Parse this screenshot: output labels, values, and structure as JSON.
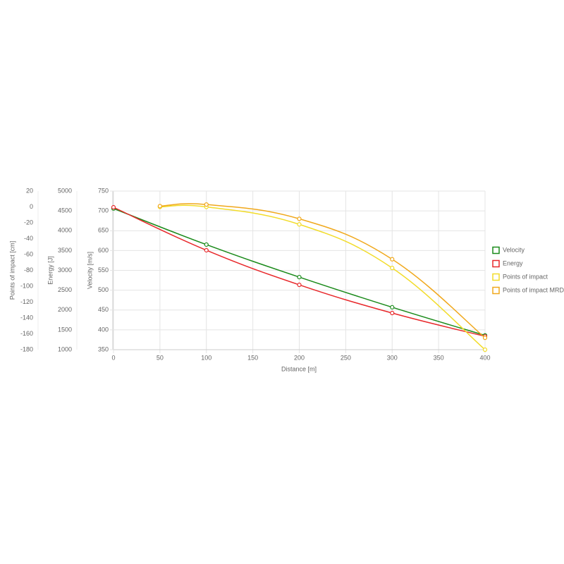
{
  "chart_data": {
    "type": "line",
    "xlabel": "Distance [m]",
    "xlim": [
      0,
      400
    ],
    "xticks": [
      0,
      50,
      100,
      150,
      200,
      250,
      300,
      350,
      400
    ],
    "ylabel": "Velocity [m/s]",
    "ylim": [
      350,
      750
    ],
    "yticks": [
      350,
      400,
      450,
      500,
      550,
      600,
      650,
      700,
      750
    ],
    "y2label": "Energy [J]",
    "y2lim": [
      1000,
      5000
    ],
    "y2ticks": [
      1000,
      1500,
      2000,
      2500,
      3000,
      3500,
      4000,
      4500,
      5000
    ],
    "y3label": "Points of impact [cm]",
    "y3lim": [
      -180,
      20
    ],
    "y3ticks": [
      -180,
      -160,
      -140,
      -120,
      -100,
      -80,
      -60,
      -40,
      -20,
      0,
      20
    ],
    "grid": true,
    "legend": "right",
    "series": [
      {
        "name": "Velocity",
        "color": "#1a8a1a",
        "axis": "y",
        "x": [
          0,
          100,
          200,
          300,
          400
        ],
        "values": [
          706,
          615,
          533,
          457,
          386
        ]
      },
      {
        "name": "Energy",
        "color": "#e8282b",
        "axis": "y2",
        "x": [
          0,
          100,
          200,
          300,
          400
        ],
        "values": [
          4591,
          3507,
          2635,
          1924,
          1337
        ]
      },
      {
        "name": "Points of impact",
        "color": "#f2dc2a",
        "axis": "y3",
        "x": [
          50,
          100,
          200,
          300,
          400
        ],
        "values": [
          0,
          0,
          -22,
          -77,
          -180
        ]
      },
      {
        "name": "Points of impact MRD",
        "color": "#f0a81c",
        "axis": "y3",
        "x": [
          50,
          100,
          200,
          300,
          400
        ],
        "values": [
          1,
          3,
          -15,
          -66,
          -165
        ]
      }
    ]
  }
}
